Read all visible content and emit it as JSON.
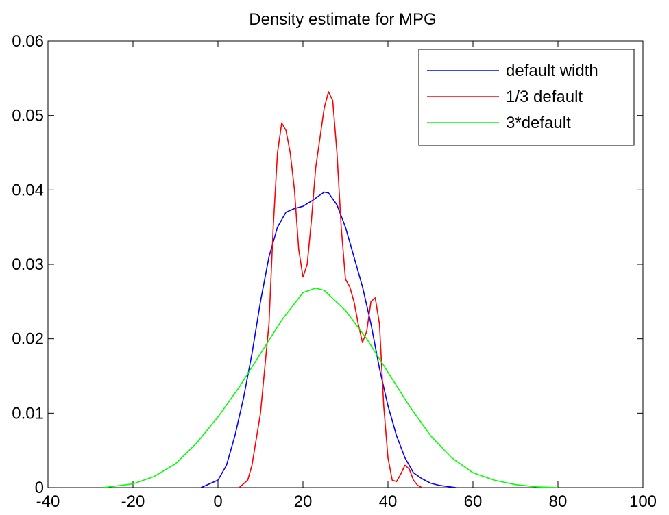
{
  "chart_data": {
    "type": "line",
    "title": "Density estimate for MPG",
    "xlabel": "",
    "ylabel": "",
    "xlim": [
      -40,
      100
    ],
    "ylim": [
      0,
      0.06
    ],
    "xticks": [
      -40,
      -20,
      0,
      20,
      40,
      60,
      80,
      100
    ],
    "yticks": [
      0,
      0.01,
      0.02,
      0.03,
      0.04,
      0.05,
      0.06
    ],
    "xtick_labels": [
      "-40",
      "-20",
      "0",
      "20",
      "40",
      "60",
      "80",
      "100"
    ],
    "ytick_labels": [
      "0",
      "0.01",
      "0.02",
      "0.03",
      "0.04",
      "0.05",
      "0.06"
    ],
    "grid": false,
    "legend_position": "top-right",
    "series": [
      {
        "name": "default width",
        "color": "#0000ff",
        "points": [
          [
            -4,
            0
          ],
          [
            0,
            0.001
          ],
          [
            2,
            0.003
          ],
          [
            4,
            0.007
          ],
          [
            6,
            0.012
          ],
          [
            8,
            0.018
          ],
          [
            10,
            0.025
          ],
          [
            12,
            0.031
          ],
          [
            14,
            0.035
          ],
          [
            16,
            0.037
          ],
          [
            18,
            0.0375
          ],
          [
            20,
            0.0378
          ],
          [
            22,
            0.0385
          ],
          [
            24,
            0.0393
          ],
          [
            25,
            0.0397
          ],
          [
            26,
            0.0396
          ],
          [
            28,
            0.038
          ],
          [
            30,
            0.035
          ],
          [
            32,
            0.031
          ],
          [
            34,
            0.027
          ],
          [
            36,
            0.022
          ],
          [
            38,
            0.016
          ],
          [
            40,
            0.011
          ],
          [
            42,
            0.007
          ],
          [
            44,
            0.004
          ],
          [
            46,
            0.002
          ],
          [
            48,
            0.0012
          ],
          [
            50,
            0.0006
          ],
          [
            52,
            0.0003
          ],
          [
            56,
            0
          ]
        ]
      },
      {
        "name": "1/3 default",
        "color": "#ff0000",
        "points": [
          [
            5,
            0
          ],
          [
            7,
            0.001
          ],
          [
            8,
            0.003
          ],
          [
            10,
            0.01
          ],
          [
            11,
            0.016
          ],
          [
            12,
            0.022
          ],
          [
            13,
            0.035
          ],
          [
            14,
            0.045
          ],
          [
            15,
            0.049
          ],
          [
            16,
            0.048
          ],
          [
            17,
            0.045
          ],
          [
            18,
            0.04
          ],
          [
            19,
            0.032
          ],
          [
            20,
            0.0283
          ],
          [
            21,
            0.03
          ],
          [
            22,
            0.036
          ],
          [
            23,
            0.043
          ],
          [
            24,
            0.047
          ],
          [
            25,
            0.051
          ],
          [
            26,
            0.0532
          ],
          [
            27,
            0.052
          ],
          [
            28,
            0.045
          ],
          [
            29,
            0.035
          ],
          [
            30,
            0.028
          ],
          [
            31,
            0.027
          ],
          [
            32,
            0.025
          ],
          [
            33,
            0.022
          ],
          [
            34,
            0.0195
          ],
          [
            35,
            0.021
          ],
          [
            36,
            0.025
          ],
          [
            37,
            0.0255
          ],
          [
            38,
            0.022
          ],
          [
            39,
            0.011
          ],
          [
            40,
            0.004
          ],
          [
            41,
            0.001
          ],
          [
            42,
            0.0008
          ],
          [
            43,
            0.0018
          ],
          [
            44,
            0.003
          ],
          [
            45,
            0.0025
          ],
          [
            46,
            0.001
          ],
          [
            47,
            0.0003
          ],
          [
            48,
            0
          ]
        ]
      },
      {
        "name": "3*default",
        "color": "#00ff00",
        "points": [
          [
            -27,
            0
          ],
          [
            -20,
            0.0005
          ],
          [
            -15,
            0.0015
          ],
          [
            -10,
            0.0032
          ],
          [
            -5,
            0.006
          ],
          [
            0,
            0.0095
          ],
          [
            5,
            0.0135
          ],
          [
            10,
            0.018
          ],
          [
            15,
            0.0225
          ],
          [
            20,
            0.0262
          ],
          [
            23,
            0.0268
          ],
          [
            25,
            0.0265
          ],
          [
            30,
            0.0238
          ],
          [
            35,
            0.02
          ],
          [
            40,
            0.0155
          ],
          [
            45,
            0.011
          ],
          [
            50,
            0.007
          ],
          [
            55,
            0.004
          ],
          [
            60,
            0.002
          ],
          [
            65,
            0.001
          ],
          [
            70,
            0.0004
          ],
          [
            75,
            0.0001
          ],
          [
            80,
            0
          ]
        ]
      }
    ]
  }
}
